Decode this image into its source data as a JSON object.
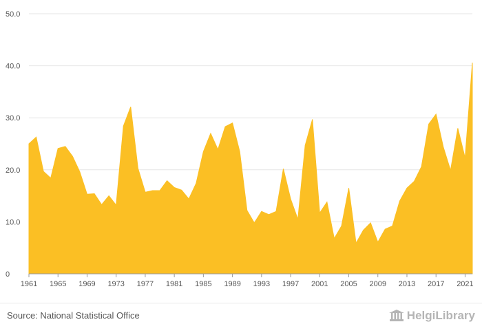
{
  "chart_data": {
    "type": "area",
    "title": "",
    "xlabel": "",
    "ylabel": "",
    "ylim": [
      0,
      50
    ],
    "y_ticks": [
      "0",
      "10.0",
      "20.0",
      "30.0",
      "40.0",
      "50.0"
    ],
    "x_ticks": [
      "1961",
      "1965",
      "1969",
      "1973",
      "1977",
      "1981",
      "1985",
      "1989",
      "1993",
      "1997",
      "2001",
      "2005",
      "2009",
      "2013",
      "2017",
      "2021"
    ],
    "grid": true,
    "color": "#fbbf24",
    "series": [
      {
        "x": [
          1961,
          1962,
          1963,
          1964,
          1965,
          1966,
          1967,
          1968,
          1969,
          1970,
          1971,
          1972,
          1973,
          1974,
          1975,
          1976,
          1977,
          1978,
          1979,
          1980,
          1981,
          1982,
          1983,
          1984,
          1985,
          1986,
          1987,
          1988,
          1989,
          1990,
          1991,
          1992,
          1993,
          1994,
          1995,
          1996,
          1997,
          1998,
          1999,
          2000,
          2001,
          2002,
          2003,
          2004,
          2005,
          2006,
          2007,
          2008,
          2009,
          2010,
          2011,
          2012,
          2013,
          2014,
          2015,
          2016,
          2017,
          2018,
          2019,
          2020,
          2021,
          2022
        ],
        "values": [
          25.0,
          26.3,
          19.7,
          18.4,
          24.1,
          24.5,
          22.6,
          19.6,
          15.3,
          15.4,
          13.3,
          15.0,
          13.2,
          28.4,
          32.1,
          20.3,
          15.7,
          16.0,
          16.0,
          17.9,
          16.6,
          16.1,
          14.4,
          17.4,
          23.5,
          27.0,
          23.9,
          28.3,
          29.0,
          23.5,
          12.2,
          9.8,
          12.0,
          11.4,
          12.0,
          20.2,
          14.4,
          10.5,
          24.7,
          29.7,
          11.7,
          13.8,
          6.8,
          9.2,
          16.5,
          5.9,
          8.4,
          9.8,
          6.1,
          8.6,
          9.2,
          14.0,
          16.5,
          17.8,
          20.6,
          28.8,
          30.7,
          24.4,
          19.9,
          28.0,
          22.3,
          40.6
        ]
      }
    ]
  },
  "footer": {
    "source": "Source: National Statistical Office",
    "logo_text": "HelgiLibrary"
  }
}
